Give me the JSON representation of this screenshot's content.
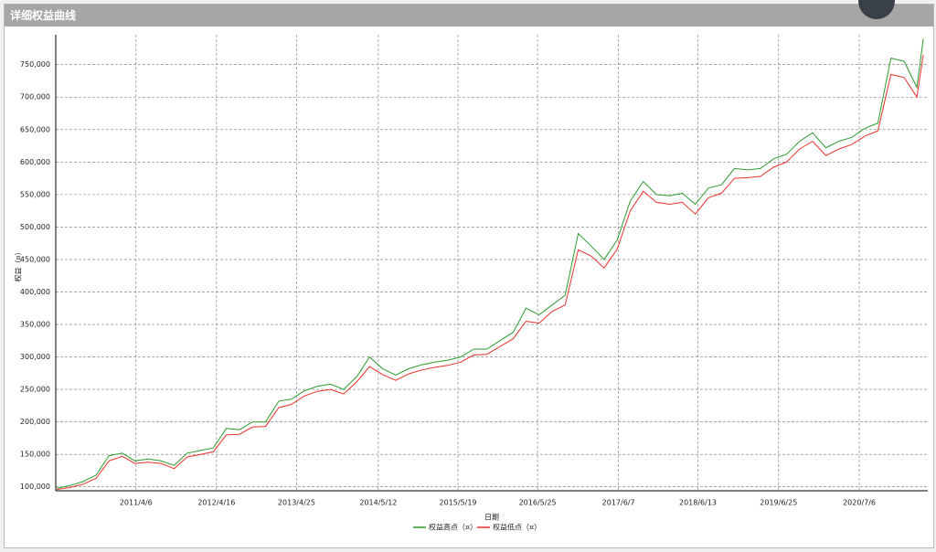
{
  "window": {
    "title": "详细权益曲线"
  },
  "chart_data": {
    "type": "line",
    "y_label": "权益（¤）",
    "x_label": "日期",
    "x": [
      "2010/4/1",
      "2010/6/1",
      "2010/8/1",
      "2010/10/1",
      "2010/12/1",
      "2011/2/1",
      "2011/4/1",
      "2011/6/1",
      "2011/8/1",
      "2011/10/1",
      "2011/12/1",
      "2012/2/1",
      "2012/4/1",
      "2012/6/1",
      "2012/8/1",
      "2012/10/1",
      "2012/12/1",
      "2013/2/1",
      "2013/4/1",
      "2013/6/1",
      "2013/8/1",
      "2013/10/1",
      "2013/12/1",
      "2014/2/1",
      "2014/4/1",
      "2014/6/1",
      "2014/8/1",
      "2014/10/1",
      "2014/12/1",
      "2015/2/1",
      "2015/4/1",
      "2015/6/1",
      "2015/8/1",
      "2015/10/1",
      "2015/12/1",
      "2016/2/1",
      "2016/4/1",
      "2016/6/1",
      "2016/8/1",
      "2016/10/1",
      "2016/12/1",
      "2017/2/1",
      "2017/4/1",
      "2017/6/1",
      "2017/8/1",
      "2017/10/1",
      "2017/12/1",
      "2018/2/1",
      "2018/4/1",
      "2018/6/1",
      "2018/8/1",
      "2018/10/1",
      "2018/12/1",
      "2019/2/1",
      "2019/4/1",
      "2019/6/1",
      "2019/8/1",
      "2019/10/1",
      "2019/12/1",
      "2020/2/1",
      "2020/4/1",
      "2020/6/1",
      "2020/8/1",
      "2020/10/1",
      "2020/12/1",
      "2021/2/1",
      "2021/4/1",
      "2021/5/1"
    ],
    "series": [
      {
        "name": "权益高点（¤）",
        "color": "#2e9a2e",
        "values": [
          98000,
          102000,
          108000,
          118000,
          148000,
          152000,
          140000,
          143000,
          140000,
          133000,
          152000,
          156000,
          160000,
          190000,
          188000,
          200000,
          200000,
          232000,
          235000,
          248000,
          255000,
          258000,
          250000,
          270000,
          300000,
          282000,
          272000,
          282000,
          288000,
          292000,
          295000,
          300000,
          312000,
          312000,
          325000,
          338000,
          375000,
          365000,
          380000,
          395000,
          490000,
          470000,
          450000,
          480000,
          540000,
          570000,
          550000,
          548000,
          552000,
          535000,
          560000,
          565000,
          590000,
          588000,
          590000,
          605000,
          612000,
          632000,
          645000,
          622000,
          632000,
          638000,
          652000,
          660000,
          760000,
          755000,
          715000,
          790000
        ]
      },
      {
        "name": "权益低点（¤）",
        "color": "#e8302a",
        "values": [
          96000,
          99000,
          104000,
          113000,
          140000,
          147000,
          136000,
          138000,
          136000,
          128000,
          146000,
          150000,
          154000,
          180000,
          181000,
          192000,
          193000,
          222000,
          227000,
          240000,
          247000,
          250000,
          243000,
          262000,
          285000,
          273000,
          264000,
          274000,
          280000,
          284000,
          287000,
          292000,
          303000,
          304000,
          316000,
          328000,
          355000,
          352000,
          370000,
          380000,
          465000,
          455000,
          437000,
          466000,
          525000,
          555000,
          538000,
          535000,
          538000,
          520000,
          545000,
          552000,
          575000,
          576000,
          578000,
          592000,
          600000,
          620000,
          632000,
          610000,
          620000,
          627000,
          640000,
          648000,
          735000,
          730000,
          700000,
          765000
        ]
      }
    ],
    "xlim": [
      "2010/3/27",
      "2021/5/22"
    ],
    "xticks": [
      "2011/4/6",
      "2012/4/16",
      "2013/4/25",
      "2014/5/12",
      "2015/5/19",
      "2016/5/25",
      "2017/6/7",
      "2018/6/13",
      "2019/6/25",
      "2020/7/6"
    ],
    "ylim": [
      94000,
      796000
    ],
    "yticks": [
      {
        "value": 100000,
        "label": "100,000"
      },
      {
        "value": 150000,
        "label": "150,000"
      },
      {
        "value": 200000,
        "label": "200,000"
      },
      {
        "value": 250000,
        "label": "250,000"
      },
      {
        "value": 300000,
        "label": "300,000"
      },
      {
        "value": 350000,
        "label": "350,000"
      },
      {
        "value": 400000,
        "label": "400,000"
      },
      {
        "value": 450000,
        "label": "450,000"
      },
      {
        "value": 500000,
        "label": "500,000"
      },
      {
        "value": 550000,
        "label": "550,000"
      },
      {
        "value": 600000,
        "label": "600,000"
      },
      {
        "value": 650000,
        "label": "650,000"
      },
      {
        "value": 700000,
        "label": "700,000"
      },
      {
        "value": 750000,
        "label": "750,000"
      }
    ],
    "grid": true
  }
}
